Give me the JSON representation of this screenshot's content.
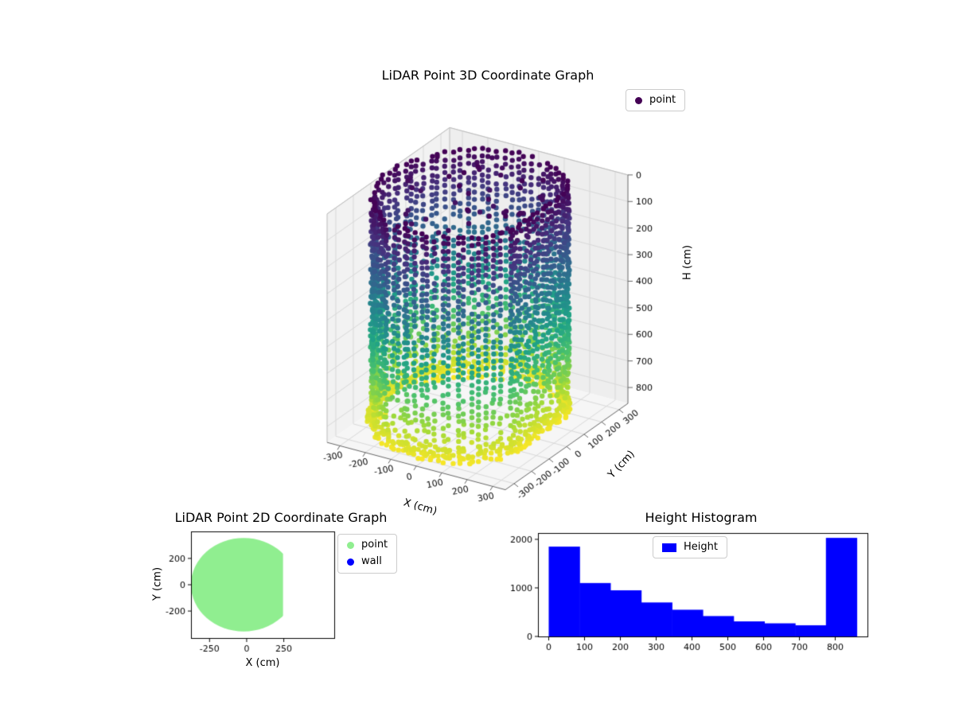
{
  "figure": {
    "background": "#ffffff"
  },
  "chart_data": [
    {
      "id": "lidar3d",
      "type": "scatter3d",
      "title": "LiDAR Point 3D Coordinate Graph",
      "xlabel": "X (cm)",
      "ylabel": "Y (cm)",
      "zlabel": "H (cm)",
      "x_ticks": [
        -300,
        -200,
        -100,
        0,
        100,
        200,
        300
      ],
      "y_ticks": [
        -300,
        -200,
        -100,
        0,
        100,
        200,
        300
      ],
      "z_ticks": [
        0,
        100,
        200,
        300,
        400,
        500,
        600,
        700,
        800
      ],
      "xlim": [
        -350,
        350
      ],
      "ylim": [
        -350,
        350
      ],
      "zlim": [
        0,
        860
      ],
      "z_inverted": true,
      "colormap": "viridis",
      "legend": [
        {
          "label": "point",
          "color": "#440154"
        }
      ],
      "point_cloud": {
        "shape": "cylinder-room-scan",
        "center_x": -30,
        "center_y": 0,
        "radius": 320,
        "wall_x": 245,
        "h_min": 0,
        "h_max": 860,
        "columns": 80,
        "color_low_h": "#440154",
        "color_high_h": "#fde725"
      }
    },
    {
      "id": "lidar2d",
      "type": "scatter",
      "title": "LiDAR Point 2D Coordinate Graph",
      "xlabel": "X (cm)",
      "ylabel": "Y (cm)",
      "x_ticks": [
        -250,
        0,
        250
      ],
      "y_ticks": [
        -200,
        0,
        200
      ],
      "xlim": [
        -375,
        590
      ],
      "ylim": [
        -405,
        405
      ],
      "legend": [
        {
          "label": "point",
          "color": "#90EE90"
        },
        {
          "label": "wall",
          "color": "#0000FF"
        }
      ],
      "region": {
        "shape": "disc-clipped-by-wall",
        "center_x": -20,
        "center_y": 0,
        "radius": 355,
        "wall_x": 245,
        "color": "#90EE90"
      }
    },
    {
      "id": "height_hist",
      "type": "bar",
      "title": "Height Histogram",
      "legend": [
        {
          "label": "Height",
          "color": "#0000FF"
        }
      ],
      "bar_color": "#0000FF",
      "bin_start": 0,
      "bin_width": 86,
      "values": [
        1850,
        1100,
        950,
        700,
        550,
        420,
        310,
        270,
        230,
        2030
      ],
      "x_ticks": [
        0,
        100,
        200,
        300,
        400,
        500,
        600,
        700,
        800
      ],
      "y_ticks": [
        0,
        1000,
        2000
      ],
      "xlim": [
        -30,
        890
      ],
      "ylim": [
        0,
        2130
      ]
    }
  ],
  "viridis_stops": [
    "#440154",
    "#46327e",
    "#365c8d",
    "#277f8e",
    "#1fa187",
    "#4ac16d",
    "#a0da39",
    "#fde725"
  ]
}
